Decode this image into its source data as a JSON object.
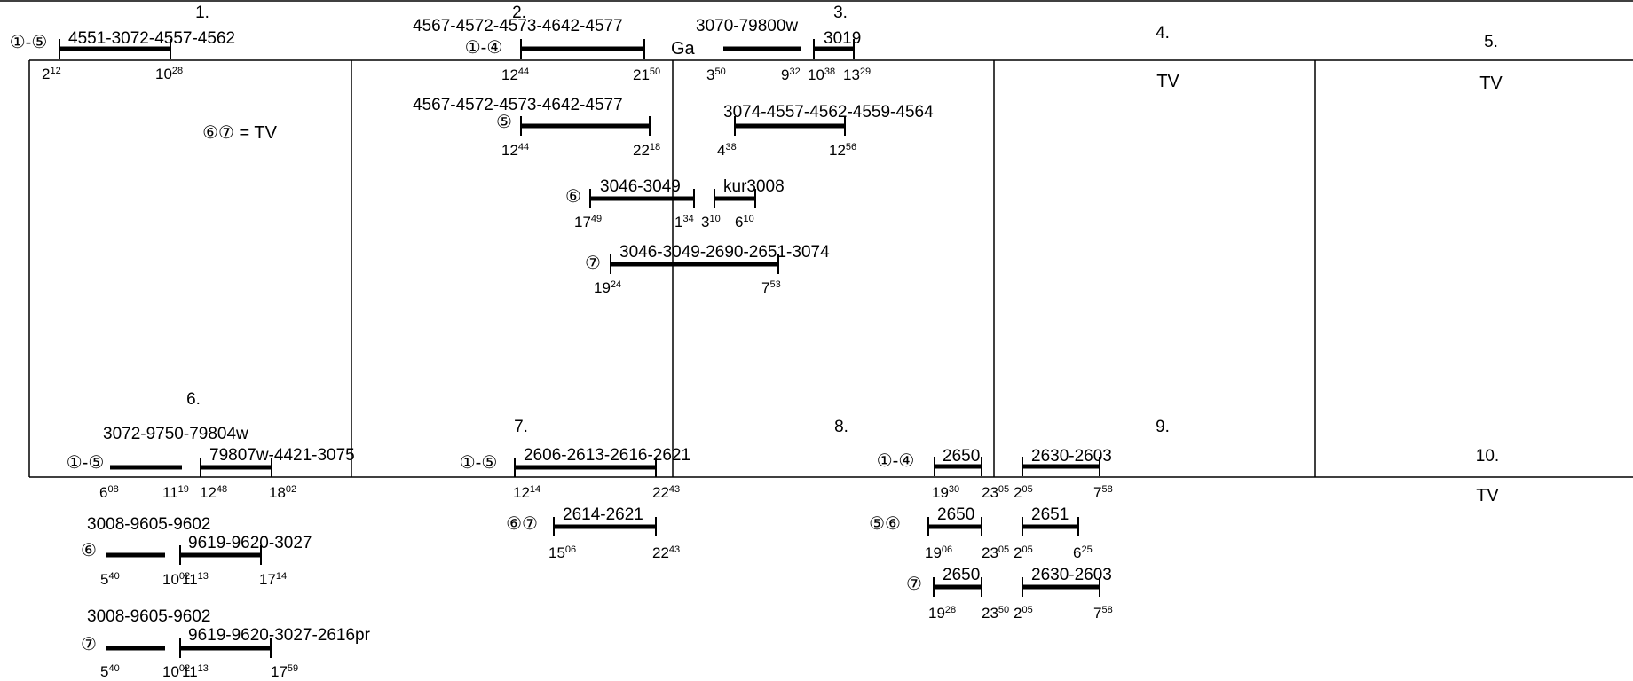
{
  "periods": [
    {
      "label": "1.",
      "note": "⑥⑦ = TV",
      "rows": [
        {
          "prefix": "①-⑤",
          "segments": [
            {
              "train": "4551-3072-4557-4562",
              "dep": [
                "2",
                "12"
              ],
              "arr": [
                "10",
                "28"
              ]
            }
          ]
        }
      ]
    },
    {
      "label": "2.",
      "gap": "Ga",
      "rows": [
        {
          "prefix": "①-④",
          "segments": [
            {
              "train": "4567-4572-4573-4642-4577",
              "dep": [
                "12",
                "44"
              ],
              "arr": [
                "21",
                "50"
              ]
            }
          ]
        },
        {
          "prefix": "⑤",
          "segments": [
            {
              "train": "4567-4572-4573-4642-4577",
              "dep": [
                "12",
                "44"
              ],
              "arr": [
                "22",
                "18"
              ]
            }
          ]
        },
        {
          "prefix": "⑥",
          "segments": [
            {
              "train": "3046-3049",
              "dep": [
                "17",
                "49"
              ],
              "arr": [
                "1",
                "34"
              ]
            }
          ]
        },
        {
          "prefix": "⑦",
          "segments": [
            {
              "train": "3046-3049-2690-2651-3074",
              "dep": [
                "19",
                "24"
              ],
              "arr": [
                "7",
                "53"
              ]
            }
          ]
        }
      ]
    },
    {
      "label": "3.",
      "rows": [
        {
          "segments": [
            {
              "train": "3070-79800w",
              "dep": [
                "3",
                "50"
              ],
              "arr": [
                "9",
                "32"
              ]
            },
            {
              "train": "3019",
              "dep": [
                "10",
                "38"
              ],
              "arr": [
                "13",
                "29"
              ]
            }
          ]
        },
        {
          "segments": [
            {
              "train": "3074-4557-4562-4559-4564",
              "dep": [
                "4",
                "38"
              ],
              "arr": [
                "12",
                "56"
              ]
            }
          ]
        },
        {
          "segments": [
            {
              "train": "kur3008",
              "dep": [
                "3",
                "10"
              ],
              "arr": [
                "6",
                "10"
              ]
            }
          ]
        }
      ]
    },
    {
      "label": "4.",
      "note": "TV"
    },
    {
      "label": "5.",
      "note": "TV"
    },
    {
      "label": "6.",
      "rows": [
        {
          "prefix": "①-⑤",
          "segments": [
            {
              "train": "3072-9750-79804w",
              "dep": [
                "6",
                "08"
              ],
              "arr": [
                "11",
                "19"
              ]
            },
            {
              "train": "79807w-4421-3075",
              "dep": [
                "12",
                "48"
              ],
              "arr": [
                "18",
                "02"
              ]
            }
          ]
        },
        {
          "prefix": "⑥",
          "segments": [
            {
              "train": "3008-9605-9602",
              "dep": [
                "5",
                "40"
              ],
              "arr": [
                "10",
                "02"
              ]
            },
            {
              "train": "9619-9620-3027",
              "dep": [
                "11",
                "13"
              ],
              "arr": [
                "17",
                "14"
              ]
            }
          ]
        },
        {
          "prefix": "⑦",
          "segments": [
            {
              "train": "3008-9605-9602",
              "dep": [
                "5",
                "40"
              ],
              "arr": [
                "10",
                "02"
              ]
            },
            {
              "train": "9619-9620-3027-2616pr",
              "dep": [
                "11",
                "13"
              ],
              "arr": [
                "17",
                "59"
              ]
            }
          ]
        }
      ]
    },
    {
      "label": "7.",
      "rows": [
        {
          "prefix": "①-⑤",
          "segments": [
            {
              "train": "2606-2613-2616-2621",
              "dep": [
                "12",
                "14"
              ],
              "arr": [
                "22",
                "43"
              ]
            }
          ]
        },
        {
          "prefix": "⑥⑦",
          "segments": [
            {
              "train": "2614-2621",
              "dep": [
                "15",
                "06"
              ],
              "arr": [
                "22",
                "43"
              ]
            }
          ]
        }
      ]
    },
    {
      "label": "8.",
      "rows": [
        {
          "prefix": "①-④",
          "segments": [
            {
              "train": "2650",
              "dep": [
                "19",
                "30"
              ],
              "arr": [
                "23",
                "05"
              ]
            }
          ]
        },
        {
          "prefix": "⑤⑥",
          "segments": [
            {
              "train": "2650",
              "dep": [
                "19",
                "06"
              ],
              "arr": [
                "23",
                "05"
              ]
            }
          ]
        },
        {
          "prefix": "⑦",
          "segments": [
            {
              "train": "2650",
              "dep": [
                "19",
                "28"
              ],
              "arr": [
                "23",
                "50"
              ]
            }
          ]
        }
      ]
    },
    {
      "label": "9.",
      "rows": [
        {
          "segments": [
            {
              "train": "2630-2603",
              "dep": [
                "2",
                "05"
              ],
              "arr": [
                "7",
                "58"
              ]
            }
          ]
        },
        {
          "segments": [
            {
              "train": "2651",
              "dep": [
                "2",
                "05"
              ],
              "arr": [
                "6",
                "25"
              ]
            }
          ]
        },
        {
          "segments": [
            {
              "train": "2630-2603",
              "dep": [
                "2",
                "05"
              ],
              "arr": [
                "7",
                "58"
              ]
            }
          ]
        }
      ]
    },
    {
      "label": "10.",
      "note": "TV"
    }
  ]
}
